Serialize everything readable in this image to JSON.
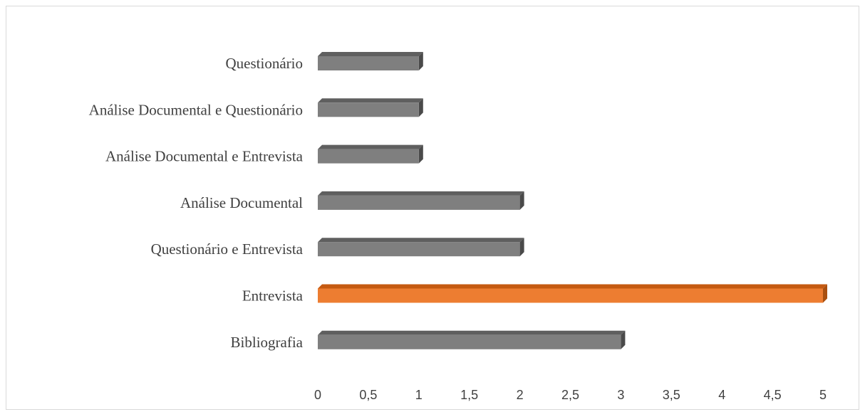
{
  "chart_data": {
    "type": "bar",
    "orientation": "horizontal",
    "style": "3d",
    "categories": [
      "Bibliografia",
      "Entrevista",
      "Questionário e Entrevista",
      "Análise Documental",
      "Análise Documental e Entrevista",
      "Análise Documental e Questionário",
      "Questionário"
    ],
    "values": [
      3,
      5,
      2,
      2,
      1,
      1,
      1
    ],
    "highlight_index": 1,
    "xlim": [
      0,
      5
    ],
    "xticks": [
      "0",
      "0,5",
      "1",
      "1,5",
      "2",
      "2,5",
      "3",
      "3,5",
      "4",
      "4,5",
      "5"
    ],
    "grid": false,
    "legend": "none",
    "colors": {
      "bar": "#7f7f7f",
      "bar_top": "#5f5f5f",
      "bar_side": "#4a4a4a",
      "highlight": "#ed7d31",
      "highlight_top": "#c55a11",
      "highlight_side": "#a94f0f"
    }
  }
}
